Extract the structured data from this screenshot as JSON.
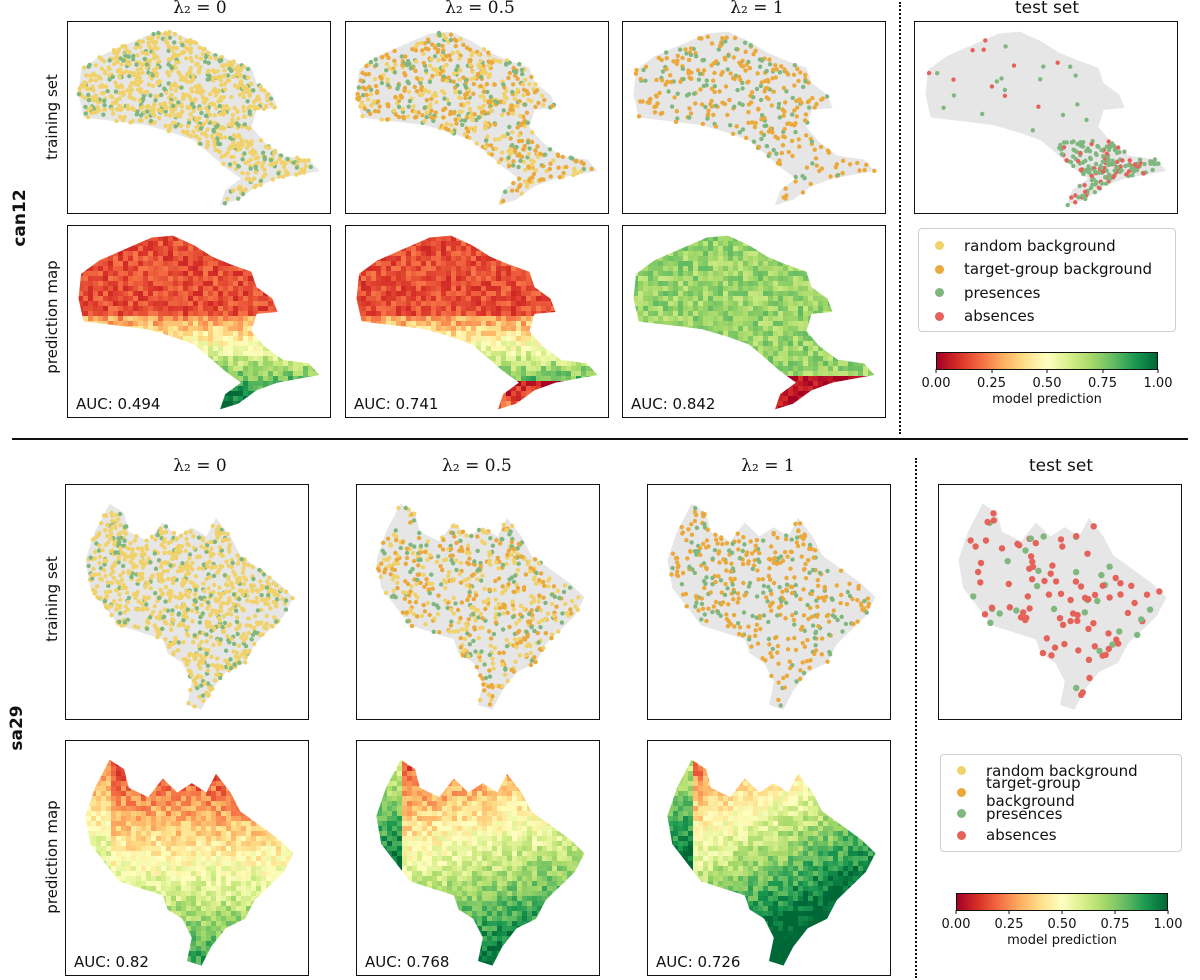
{
  "colors": {
    "random": "#f1d26a",
    "target": "#eba93c",
    "presence": "#7fb77e",
    "absence": "#e5625a",
    "land": "#e6e6e6"
  },
  "legend": {
    "random": "random background",
    "target": "target-group background",
    "presence": "presences",
    "absence": "absences"
  },
  "colorbar": {
    "label": "model prediction",
    "ticks": [
      "0.00",
      "0.25",
      "0.50",
      "0.75",
      "1.00"
    ]
  },
  "row_labels": {
    "training": "training set",
    "prediction": "prediction map"
  },
  "lambda_prefix": "λ₂ = ",
  "datasets": [
    {
      "name": "can12",
      "columns": [
        "0",
        "0.5",
        "1"
      ],
      "test_title": "test set",
      "auc": [
        "AUC: 0.494",
        "AUC: 0.741",
        "AUC: 0.842"
      ],
      "auc_values": [
        0.494,
        0.741,
        0.842
      ]
    },
    {
      "name": "sa29",
      "columns": [
        "0",
        "0.5",
        "1"
      ],
      "test_title": "test set",
      "auc": [
        "AUC: 0.82",
        "AUC: 0.768",
        "AUC: 0.726"
      ],
      "auc_values": [
        0.82,
        0.768,
        0.726
      ]
    }
  ]
}
